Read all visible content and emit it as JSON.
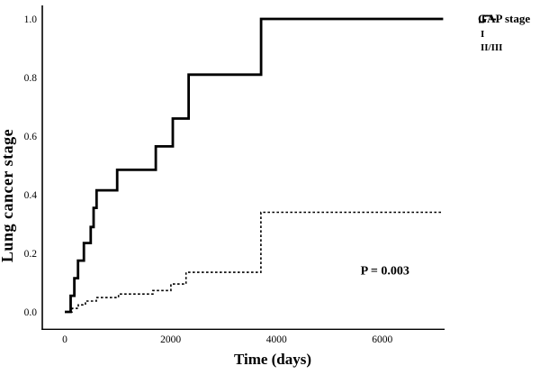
{
  "figure": {
    "x_axis_title": "Time (days)",
    "y_axis_title": "Lung cancer stage",
    "p_value": "P = 0.003",
    "legend": {
      "title": "GAP stage",
      "items": [
        {
          "label": "I",
          "line_style": "dashed"
        },
        {
          "label": "II/III",
          "line_style": "solid"
        }
      ]
    }
  },
  "chart_data": {
    "type": "line",
    "subtype": "step (cumulative incidence, Kaplan-Meier style)",
    "title": "",
    "xlabel": "Time (days)",
    "ylabel": "Lung cancer stage",
    "x_ticks": [
      0,
      2000,
      4000,
      6000
    ],
    "y_ticks": [
      0.0,
      0.2,
      0.4,
      0.6,
      0.8,
      1.0
    ],
    "xlim": [
      -425,
      7180
    ],
    "ylim": [
      -0.05,
      1.05
    ],
    "grid": false,
    "legend_position": "outside-top-right",
    "annotation": {
      "text": "P = 0.003",
      "x_days": 6050,
      "y_value": 0.127
    },
    "series": [
      {
        "name": "I",
        "line_style": "dashed",
        "color": "#000000",
        "points_days_value": [
          [
            100,
            0
          ],
          [
            140,
            0.012
          ],
          [
            255,
            0.024
          ],
          [
            390,
            0.037
          ],
          [
            595,
            0.049
          ],
          [
            1015,
            0.061
          ],
          [
            1665,
            0.073
          ],
          [
            2005,
            0.095
          ],
          [
            2290,
            0.135
          ],
          [
            3705,
            0.34
          ],
          [
            7150,
            0.34
          ]
        ]
      },
      {
        "name": "II/III",
        "line_style": "solid",
        "color": "#000000",
        "points_days_value": [
          [
            0,
            0
          ],
          [
            110,
            0.055
          ],
          [
            180,
            0.115
          ],
          [
            250,
            0.175
          ],
          [
            360,
            0.235
          ],
          [
            490,
            0.29
          ],
          [
            545,
            0.355
          ],
          [
            600,
            0.415
          ],
          [
            990,
            0.485
          ],
          [
            1720,
            0.565
          ],
          [
            2040,
            0.66
          ],
          [
            2340,
            0.81
          ],
          [
            3710,
            1.0
          ],
          [
            7150,
            1.0
          ]
        ]
      }
    ]
  }
}
